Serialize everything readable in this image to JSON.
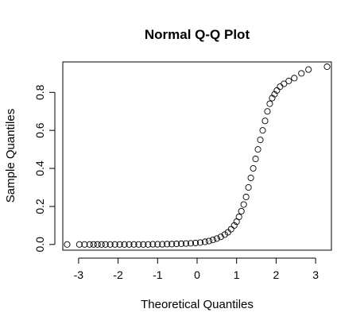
{
  "chart_data": {
    "type": "scatter",
    "title": "Normal Q-Q Plot",
    "xlabel": "Theoretical Quantiles",
    "ylabel": "Sample Quantiles",
    "xlim": [
      -3.4,
      3.4
    ],
    "ylim": [
      -0.03,
      0.96
    ],
    "x_ticks": [
      -3,
      -2,
      -1,
      0,
      1,
      2,
      3
    ],
    "y_ticks": [
      0.0,
      0.2,
      0.4,
      0.6,
      0.8
    ],
    "x_tick_labels": [
      "-3",
      "-2",
      "-1",
      "0",
      "1",
      "2",
      "3"
    ],
    "y_tick_labels": [
      "0.0",
      "0.2",
      "0.4",
      "0.6",
      "0.8"
    ],
    "marker": "open-circle",
    "grid": false,
    "legend": "none",
    "points": [
      [
        -3.29,
        0.0
      ],
      [
        -2.98,
        0.0
      ],
      [
        -2.85,
        0.0
      ],
      [
        -2.72,
        0.0
      ],
      [
        -2.62,
        0.0
      ],
      [
        -2.52,
        0.0
      ],
      [
        -2.42,
        0.0
      ],
      [
        -2.32,
        0.0
      ],
      [
        -2.2,
        0.0
      ],
      [
        -2.08,
        0.0
      ],
      [
        -1.96,
        0.0
      ],
      [
        -1.84,
        0.0
      ],
      [
        -1.72,
        0.0
      ],
      [
        -1.6,
        0.0
      ],
      [
        -1.48,
        0.0
      ],
      [
        -1.36,
        0.0
      ],
      [
        -1.24,
        0.0
      ],
      [
        -1.12,
        0.001
      ],
      [
        -1.0,
        0.001
      ],
      [
        -0.88,
        0.001
      ],
      [
        -0.76,
        0.002
      ],
      [
        -0.64,
        0.002
      ],
      [
        -0.52,
        0.003
      ],
      [
        -0.4,
        0.004
      ],
      [
        -0.28,
        0.005
      ],
      [
        -0.16,
        0.006
      ],
      [
        -0.04,
        0.008
      ],
      [
        0.08,
        0.01
      ],
      [
        0.2,
        0.014
      ],
      [
        0.3,
        0.018
      ],
      [
        0.4,
        0.024
      ],
      [
        0.5,
        0.031
      ],
      [
        0.6,
        0.04
      ],
      [
        0.7,
        0.052
      ],
      [
        0.78,
        0.064
      ],
      [
        0.86,
        0.08
      ],
      [
        0.94,
        0.1
      ],
      [
        1.0,
        0.12
      ],
      [
        1.06,
        0.145
      ],
      [
        1.12,
        0.175
      ],
      [
        1.18,
        0.21
      ],
      [
        1.24,
        0.25
      ],
      [
        1.3,
        0.3
      ],
      [
        1.36,
        0.35
      ],
      [
        1.42,
        0.4
      ],
      [
        1.48,
        0.45
      ],
      [
        1.54,
        0.5
      ],
      [
        1.6,
        0.55
      ],
      [
        1.66,
        0.6
      ],
      [
        1.72,
        0.65
      ],
      [
        1.78,
        0.7
      ],
      [
        1.84,
        0.74
      ],
      [
        1.9,
        0.77
      ],
      [
        1.96,
        0.79
      ],
      [
        2.02,
        0.81
      ],
      [
        2.1,
        0.83
      ],
      [
        2.2,
        0.845
      ],
      [
        2.32,
        0.86
      ],
      [
        2.46,
        0.875
      ],
      [
        2.64,
        0.9
      ],
      [
        2.82,
        0.92
      ],
      [
        3.29,
        0.935
      ]
    ]
  }
}
